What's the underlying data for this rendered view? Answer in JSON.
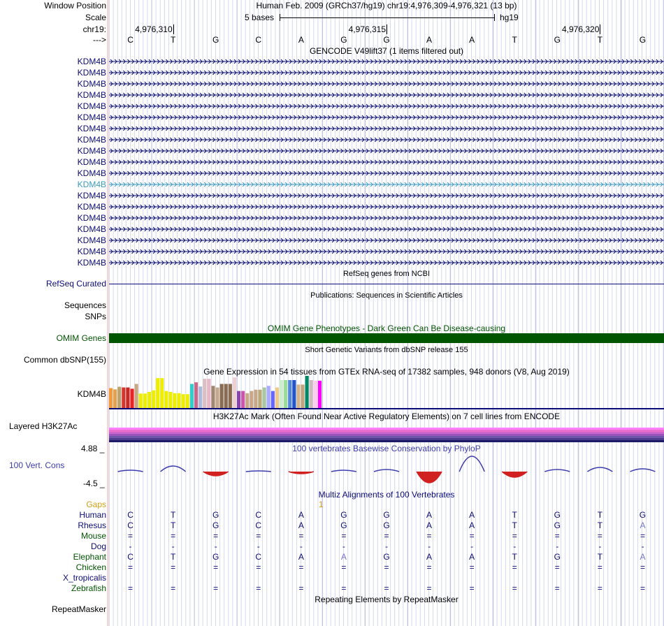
{
  "header": {
    "window_position_label": "Window Position",
    "window_position_value": "Human Feb. 2009 (GRCh37/hg19)   chr19:4,976,309-4,976,321 (13 bp)",
    "scale_label": "Scale",
    "scale_text": "5 bases",
    "scale_assembly": "hg19",
    "chrom_label": "chr19:",
    "arrow_label": "--->",
    "coords": [
      "4,976,310",
      "4,976,315",
      "4,976,320"
    ],
    "bases": [
      "C",
      "T",
      "G",
      "C",
      "A",
      "G",
      "G",
      "A",
      "A",
      "T",
      "G",
      "T",
      "G"
    ]
  },
  "gencode": {
    "title": "GENCODE V49lift37 (1 items filtered out)",
    "items": [
      "KDM4B",
      "KDM4B",
      "KDM4B",
      "KDM4B",
      "KDM4B",
      "KDM4B",
      "KDM4B",
      "KDM4B",
      "KDM4B",
      "KDM4B",
      "KDM4B",
      "KDM4B",
      "KDM4B",
      "KDM4B",
      "KDM4B",
      "KDM4B",
      "KDM4B",
      "KDM4B",
      "KDM4B"
    ],
    "highlight_index": 11,
    "color": "#0c0c78",
    "highlight_color": "#3a9bc2"
  },
  "refseq": {
    "title": "RefSeq genes from NCBI",
    "label": "RefSeq Curated",
    "color": "#0c0c78"
  },
  "publications": {
    "title": "Publications: Sequences in Scientific Articles",
    "labels": [
      "Sequences",
      "SNPs"
    ]
  },
  "omim": {
    "title": "OMIM Gene Phenotypes - Dark Green Can Be Disease-causing",
    "label": "OMIM Genes",
    "color": "#005500"
  },
  "dbsnp": {
    "title": "Short Genetic Variants from dbSNP release 155",
    "label": "Common dbSNP(155)"
  },
  "gtex": {
    "title": "Gene Expression in 54 tissues from GTEx RNA-seq of 17382 samples, 948 donors (V8, Aug 2019)",
    "label": "KDM4B",
    "bars": [
      {
        "v": 0.62,
        "c": "#f39b3a"
      },
      {
        "v": 0.58,
        "c": "#e3a04d"
      },
      {
        "v": 0.66,
        "c": "#b9a36a"
      },
      {
        "v": 0.64,
        "c": "#d9342b"
      },
      {
        "v": 0.64,
        "c": "#cc2622"
      },
      {
        "v": 0.6,
        "c": "#ee2222"
      },
      {
        "v": 0.75,
        "c": "#c8a882"
      },
      {
        "v": 0.45,
        "c": "#eeee00"
      },
      {
        "v": 0.45,
        "c": "#eeee00"
      },
      {
        "v": 0.5,
        "c": "#eeee00"
      },
      {
        "v": 0.55,
        "c": "#eeee00"
      },
      {
        "v": 0.93,
        "c": "#eeee00"
      },
      {
        "v": 0.93,
        "c": "#eeee00"
      },
      {
        "v": 0.53,
        "c": "#eeee00"
      },
      {
        "v": 0.5,
        "c": "#eeee00"
      },
      {
        "v": 0.46,
        "c": "#eeee00"
      },
      {
        "v": 0.46,
        "c": "#eeee00"
      },
      {
        "v": 0.43,
        "c": "#eeee00"
      },
      {
        "v": 0.43,
        "c": "#eeee00"
      },
      {
        "v": 0.75,
        "c": "#33cccc"
      },
      {
        "v": 0.8,
        "c": "#cc6688"
      },
      {
        "v": 0.67,
        "c": "#aabbdd"
      },
      {
        "v": 0.91,
        "c": "#dcc0c0"
      },
      {
        "v": 0.91,
        "c": "#e8b8c6"
      },
      {
        "v": 0.69,
        "c": "#a0876e"
      },
      {
        "v": 0.64,
        "c": "#c6a88c"
      },
      {
        "v": 0.75,
        "c": "#8a6c50"
      },
      {
        "v": 0.75,
        "c": "#8a6c50"
      },
      {
        "v": 0.75,
        "c": "#8a6c50"
      },
      {
        "v": 0.95,
        "c": "#eed0d0"
      },
      {
        "v": 0.53,
        "c": "#8844aa"
      },
      {
        "v": 0.53,
        "c": "#cc55aa"
      },
      {
        "v": 0.46,
        "c": "#c8a888"
      },
      {
        "v": 0.53,
        "c": "#c8a888"
      },
      {
        "v": 0.57,
        "c": "#c8a888"
      },
      {
        "v": 0.57,
        "c": "#bbaa77"
      },
      {
        "v": 0.64,
        "c": "#a8c8a0"
      },
      {
        "v": 0.69,
        "c": "#aaaaff"
      },
      {
        "v": 0.53,
        "c": "#6666ff"
      },
      {
        "v": 0.64,
        "c": "#eecc88"
      },
      {
        "v": 0.87,
        "c": "#cceecc"
      },
      {
        "v": 0.87,
        "c": "#99dd99"
      },
      {
        "v": 0.87,
        "c": "#5588dd"
      },
      {
        "v": 0.87,
        "c": "#2255cc"
      },
      {
        "v": 0.73,
        "c": "#d2b48c"
      },
      {
        "v": 0.73,
        "c": "#c2a47c"
      },
      {
        "v": 1.0,
        "c": "#008866"
      },
      {
        "v": 0.87,
        "c": "#ccbbbb"
      },
      {
        "v": 0.85,
        "c": "#ffccee"
      },
      {
        "v": 0.85,
        "c": "#ff00ff"
      }
    ]
  },
  "h3k27ac": {
    "title": "H3K27Ac Mark (Often Found Near Active Regulatory Elements) on 7 cell lines from ENCODE",
    "label": "Layered H3K27Ac",
    "layers": [
      "#ff80ff",
      "#ee6ecc",
      "#cc66cc",
      "#9955bb",
      "#6f56aa",
      "#4d3d8e",
      "#1a1a66"
    ]
  },
  "phylop": {
    "title": "100 vertebrates Basewise Conservation by PhyloP",
    "label": "100 Vert. Cons",
    "max": "4.88 _",
    "min": "-4.5 _",
    "max_color": "#3d3dae",
    "min_color": "#a52a2a",
    "scores": [
      0.2,
      0.8,
      -0.6,
      0.1,
      -0.3,
      0.2,
      0.3,
      -1.6,
      2.2,
      -0.8,
      0.3,
      0.6,
      0.4
    ]
  },
  "multiz": {
    "title": "Multiz Alignments of 100 Vertebrates",
    "gaps_label": "Gaps",
    "gap_marker": "1",
    "species": [
      {
        "name": "Human",
        "color": "#0c0c78",
        "seq": [
          "C",
          "T",
          "G",
          "C",
          "A",
          "G",
          "G",
          "A",
          "A",
          "T",
          "G",
          "T",
          "G"
        ]
      },
      {
        "name": "Rhesus",
        "color": "#0c0c78",
        "seq": [
          "C",
          "T",
          "G",
          "C",
          "A",
          "G",
          "G",
          "A",
          "A",
          "T",
          "G",
          "T",
          "A"
        ]
      },
      {
        "name": "Mouse",
        "color": "#005500",
        "seq": [
          "=",
          "=",
          "=",
          "=",
          "=",
          "=",
          "=",
          "=",
          "=",
          "=",
          "=",
          "=",
          "="
        ]
      },
      {
        "name": "Dog",
        "color": "#0c0c78",
        "seq": [
          "-",
          "-",
          "-",
          "-",
          "-",
          "-",
          "-",
          "-",
          "-",
          "-",
          "-",
          "-",
          "-"
        ]
      },
      {
        "name": "Elephant",
        "color": "#005500",
        "seq": [
          "C",
          "T",
          "G",
          "C",
          "A",
          "A",
          "G",
          "A",
          "A",
          "T",
          "G",
          "T",
          "A"
        ]
      },
      {
        "name": "Chicken",
        "color": "#005500",
        "seq": [
          "=",
          "=",
          "=",
          "=",
          "=",
          "=",
          "=",
          "=",
          "=",
          "=",
          "=",
          "=",
          "="
        ]
      },
      {
        "name": "X_tropicalis",
        "color": "#0c0c78",
        "seq": [
          "",
          "",
          "",
          "",
          "",
          "",
          "",
          "",
          "",
          "",
          "",
          "",
          ""
        ]
      },
      {
        "name": "Zebrafish",
        "color": "#005500",
        "seq": [
          "=",
          "=",
          "=",
          "=",
          "=",
          "=",
          "=",
          "=",
          "=",
          "=",
          "=",
          "=",
          "="
        ]
      }
    ]
  },
  "repeatmasker": {
    "title": "Repeating Elements by RepeatMasker",
    "label": "RepeatMasker"
  }
}
